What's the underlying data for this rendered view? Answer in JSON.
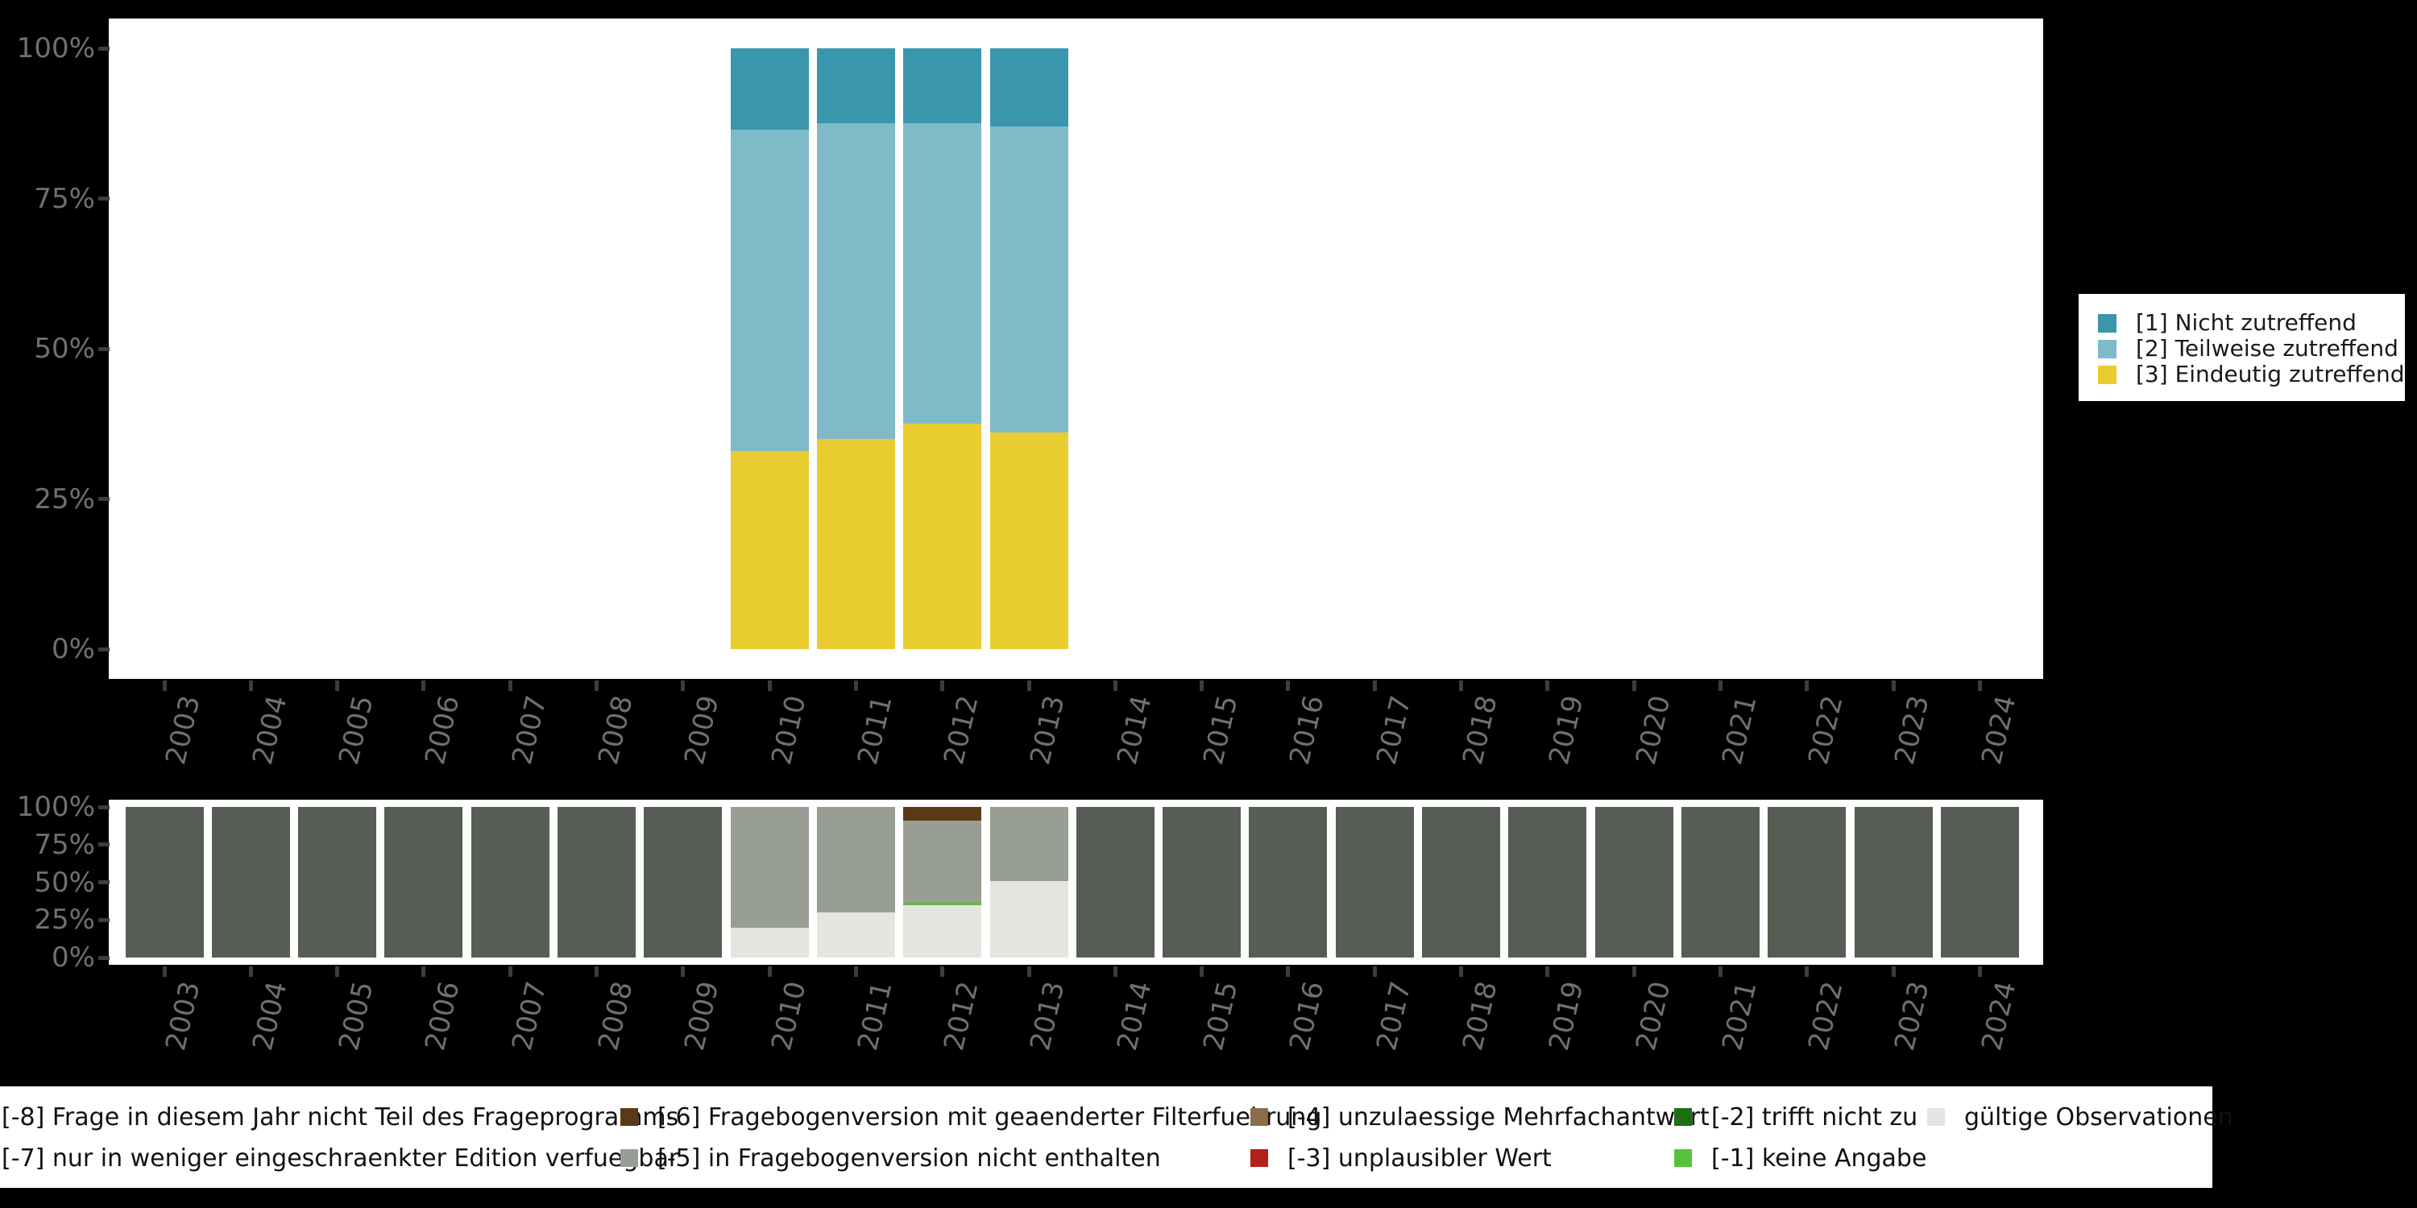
{
  "colors": {
    "background": "#000000",
    "panel": "#ffffff",
    "axis_text": "#707070",
    "tick": "#3d3d3d",
    "cat1_teal": "#3996ac",
    "cat2_lightblue": "#7fbac8",
    "cat3_yellow": "#e9cc30",
    "miss8_darkgray": "#565d54",
    "miss6_darkbrown": "#5a3a16",
    "miss5_gray": "#999e94",
    "miss4_lightbrown": "#8a6e4c",
    "miss3_red": "#b32017",
    "miss2_darkgreen": "#1d6e14",
    "miss1_brightgreen": "#58c13c",
    "valid_light": "#e2e6df"
  },
  "axis": {
    "y_tick_labels": [
      "100%",
      "75%",
      "50%",
      "25%",
      "0%"
    ],
    "y_tick_values": [
      100,
      75,
      50,
      25,
      0
    ],
    "years": [
      "2003",
      "2004",
      "2005",
      "2006",
      "2007",
      "2008",
      "2009",
      "2010",
      "2011",
      "2012",
      "2013",
      "2014",
      "2015",
      "2016",
      "2017",
      "2018",
      "2019",
      "2020",
      "2021",
      "2022",
      "2023",
      "2024"
    ]
  },
  "top_legend": {
    "items": [
      {
        "label": "[1] Nicht zutreffend",
        "color": "#3996ac"
      },
      {
        "label": "[2] Teilweise zutreffend",
        "color": "#7fbac8"
      },
      {
        "label": "[3] Eindeutig zutreffend",
        "color": "#e9cc30"
      }
    ]
  },
  "bottom_legend": {
    "rows": [
      [
        {
          "label": "[-8] Frage in diesem Jahr nicht Teil des Frageprogramms",
          "color": null
        },
        {
          "label": "[-6] Fragebogenversion mit geaenderter Filterfuehrung",
          "color": "#5a3a16"
        },
        {
          "label": "[-4] unzulaessige Mehrfachantwort",
          "color": "#8a6e4c"
        },
        {
          "label": "[-2] trifft nicht zu",
          "color": "#1d6e14"
        },
        {
          "label": "gültige Observationen",
          "color": "#e2e6df"
        }
      ],
      [
        {
          "label": "[-7] nur in weniger eingeschraenkter Edition verfuegbar",
          "color": null
        },
        {
          "label": "[-5] in Fragebogenversion nicht enthalten",
          "color": "#999e94"
        },
        {
          "label": "[-3] unplausibler Wert",
          "color": "#b32017"
        },
        {
          "label": "[-1] keine Angabe",
          "color": "#58c13c"
        },
        {
          "label": "",
          "color": null
        }
      ]
    ]
  },
  "chart_data": [
    {
      "type": "bar",
      "stacked": true,
      "title": "",
      "xlabel": "",
      "ylabel": "",
      "ylim": [
        0,
        100
      ],
      "grid": false,
      "legend_position": "right",
      "y_tick_labels": [
        "0%",
        "25%",
        "50%",
        "75%",
        "100%"
      ],
      "categories": [
        "2003",
        "2004",
        "2005",
        "2006",
        "2007",
        "2008",
        "2009",
        "2010",
        "2011",
        "2012",
        "2013",
        "2014",
        "2015",
        "2016",
        "2017",
        "2018",
        "2019",
        "2020",
        "2021",
        "2022",
        "2023",
        "2024"
      ],
      "series": [
        {
          "name": "[1] Nicht zutreffend",
          "color": "#3996ac",
          "values": {
            "2010": 13.5,
            "2011": 12.5,
            "2012": 12.5,
            "2013": 13
          }
        },
        {
          "name": "[2] Teilweise zutreffend",
          "color": "#7fbac8",
          "values": {
            "2010": 53.5,
            "2011": 52.5,
            "2012": 50,
            "2013": 51
          }
        },
        {
          "name": "[3] Eindeutig zutreffend",
          "color": "#e9cc30",
          "values": {
            "2010": 33,
            "2011": 35,
            "2012": 37.5,
            "2013": 36
          }
        }
      ]
    },
    {
      "type": "bar",
      "stacked": true,
      "title": "",
      "xlabel": "",
      "ylabel": "",
      "ylim": [
        0,
        100
      ],
      "grid": false,
      "legend_position": "bottom",
      "y_tick_labels": [
        "0%",
        "25%",
        "50%",
        "75%",
        "100%"
      ],
      "categories": [
        "2003",
        "2004",
        "2005",
        "2006",
        "2007",
        "2008",
        "2009",
        "2010",
        "2011",
        "2012",
        "2013",
        "2014",
        "2015",
        "2016",
        "2017",
        "2018",
        "2019",
        "2020",
        "2021",
        "2022",
        "2023",
        "2024"
      ],
      "series": [
        {
          "name": "[-8] Frage in diesem Jahr nicht Teil des Frageprogramms",
          "color": "#565d54",
          "values": {
            "2003": 100,
            "2004": 100,
            "2005": 100,
            "2006": 100,
            "2007": 100,
            "2008": 100,
            "2009": 100,
            "2014": 100,
            "2015": 100,
            "2016": 100,
            "2017": 100,
            "2018": 100,
            "2019": 100,
            "2020": 100,
            "2021": 100,
            "2022": 100,
            "2023": 100,
            "2024": 100
          }
        },
        {
          "name": "[-6] Fragebogenversion mit geaenderter Filterfuehrung",
          "color": "#5a3a16",
          "values": {
            "2012": 9
          }
        },
        {
          "name": "[-5] in Fragebogenversion nicht enthalten",
          "color": "#999e94",
          "values": {
            "2010": 80,
            "2011": 70,
            "2012": 54.5,
            "2013": 49
          }
        },
        {
          "name": "[-1] keine Angabe",
          "color": "#58c13c",
          "values": {
            "2012": 1.5
          }
        },
        {
          "name": "gültige Observationen",
          "color": "#e2e6df",
          "values": {
            "2010": 20,
            "2011": 30,
            "2012": 35,
            "2013": 51
          }
        }
      ]
    }
  ]
}
